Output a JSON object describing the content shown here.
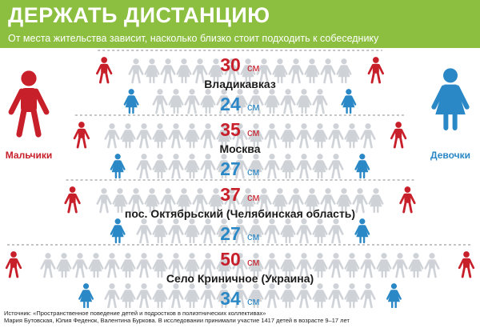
{
  "header": {
    "title": "ДЕРЖАТЬ ДИСТАНЦИЮ",
    "subtitle": "От места жительства зависит, насколько близко стоит подходить к собеседнику"
  },
  "legend": {
    "boys": "Мальчики",
    "girls": "Девочки"
  },
  "colors": {
    "header_bg": "#8cbf3f",
    "boys": "#c8202b",
    "girls": "#2a88c6",
    "crowd": "#cfd3d8",
    "value": "#c8202b",
    "value_girls": "#2a88c6"
  },
  "unit": "см",
  "chart_data": {
    "type": "bar",
    "categories": [
      "Владикавказ",
      "Москва",
      "пос. Октябрьский (Челябинская область)",
      "Село Криничное (Украина)"
    ],
    "series": [
      {
        "name": "Мальчики",
        "values": [
          30,
          35,
          37,
          50
        ]
      },
      {
        "name": "Девочки",
        "values": [
          24,
          27,
          27,
          34
        ]
      }
    ],
    "unit": "см"
  },
  "source": {
    "line1": "Источник: «Пространственное поведение детей и подростков в полиэтнических коллективах»",
    "line2": "Мария Бутовская, Юлия Феденок, Валентина Буркова. В исследовании принимали участие 1417 детей в возрасте 9–17 лет"
  }
}
